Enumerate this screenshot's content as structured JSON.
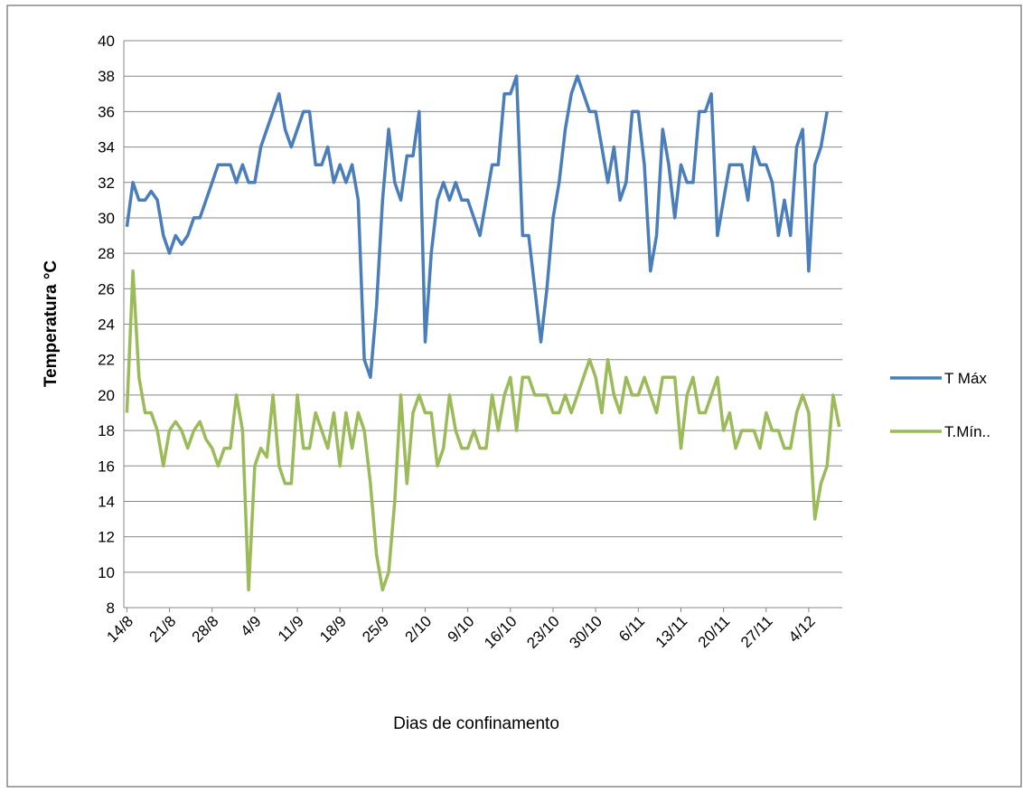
{
  "chart_data": {
    "type": "line",
    "xlabel": "Dias de confinamento",
    "ylabel": "Temperatura  °C",
    "categories": [
      "14/8",
      null,
      null,
      null,
      null,
      null,
      null,
      "21/8",
      null,
      null,
      null,
      null,
      null,
      null,
      "28/8",
      null,
      null,
      null,
      null,
      null,
      null,
      "4/9",
      null,
      null,
      null,
      null,
      null,
      null,
      "11/9",
      null,
      null,
      null,
      null,
      null,
      null,
      "18/9",
      null,
      null,
      null,
      null,
      null,
      null,
      "25/9",
      null,
      null,
      null,
      null,
      null,
      null,
      "2/10",
      null,
      null,
      null,
      null,
      null,
      null,
      "9/10",
      null,
      null,
      null,
      null,
      null,
      null,
      "16/10",
      null,
      null,
      null,
      null,
      null,
      null,
      "23/10",
      null,
      null,
      null,
      null,
      null,
      null,
      "30/10",
      null,
      null,
      null,
      null,
      null,
      null,
      "6/11",
      null,
      null,
      null,
      null,
      null,
      null,
      "13/11",
      null,
      null,
      null,
      null,
      null,
      null,
      "20/11",
      null,
      null,
      null,
      null,
      null,
      null,
      "27/11",
      null,
      null,
      null,
      null,
      null,
      null,
      "4/12",
      null,
      null,
      null,
      null,
      null
    ],
    "series": [
      {
        "name": "T Máx",
        "color": "#4a7ebb",
        "values": [
          29.5,
          32,
          31,
          31,
          31.5,
          31,
          29,
          28,
          29,
          28.5,
          29,
          30,
          30,
          31,
          32,
          33,
          33,
          33,
          32,
          33,
          32,
          32,
          34,
          35,
          36,
          37,
          35,
          34,
          35,
          36,
          36,
          33,
          33,
          34,
          32,
          33,
          32,
          33,
          31,
          22,
          21,
          25,
          31,
          35,
          32,
          31,
          33.5,
          33.5,
          36,
          23,
          28,
          31,
          32,
          31,
          32,
          31,
          31,
          30,
          29,
          31,
          33,
          33,
          37,
          37,
          38,
          29,
          29,
          26,
          23,
          26,
          30,
          32,
          35,
          37,
          38,
          37,
          36,
          36,
          34,
          32,
          34,
          31,
          32,
          36,
          36,
          33,
          27,
          29,
          35,
          33,
          30,
          33,
          32,
          32,
          36,
          36,
          37,
          29,
          31,
          33,
          33,
          33,
          31,
          34,
          33,
          33,
          32,
          29,
          31,
          29,
          34,
          35,
          27,
          33,
          34,
          36,
          null,
          null
        ]
      },
      {
        "name": "T.Mín..",
        "color": "#9bbb59",
        "values": [
          19,
          27,
          21,
          19,
          19,
          18,
          16,
          18,
          18.5,
          18,
          17,
          18,
          18.5,
          17.5,
          17,
          16,
          17,
          17,
          20,
          18,
          9,
          16,
          17,
          16.5,
          20,
          16,
          15,
          15,
          20,
          17,
          17,
          19,
          18,
          17,
          19,
          16,
          19,
          17,
          19,
          18,
          15,
          11,
          9,
          10,
          14,
          20,
          15,
          19,
          20,
          19,
          19,
          16,
          17,
          20,
          18,
          17,
          17,
          18,
          17,
          17,
          20,
          18,
          20,
          21,
          18,
          21,
          21,
          20,
          20,
          20,
          19,
          19,
          20,
          19,
          20,
          21,
          22,
          21,
          19,
          22,
          20,
          19,
          21,
          20,
          20,
          21,
          20,
          19,
          21,
          21,
          21,
          17,
          20,
          21,
          19,
          19,
          20,
          21,
          18,
          19,
          17,
          18,
          18,
          18,
          17,
          19,
          18,
          18,
          17,
          17,
          19,
          20,
          19,
          13,
          15,
          16,
          20,
          18.2
        ]
      }
    ],
    "ylim": [
      8,
      40
    ],
    "yticks": [
      8,
      10,
      12,
      14,
      16,
      18,
      20,
      22,
      24,
      26,
      28,
      30,
      32,
      34,
      36,
      38,
      40
    ],
    "grid": true,
    "legend": "right"
  }
}
